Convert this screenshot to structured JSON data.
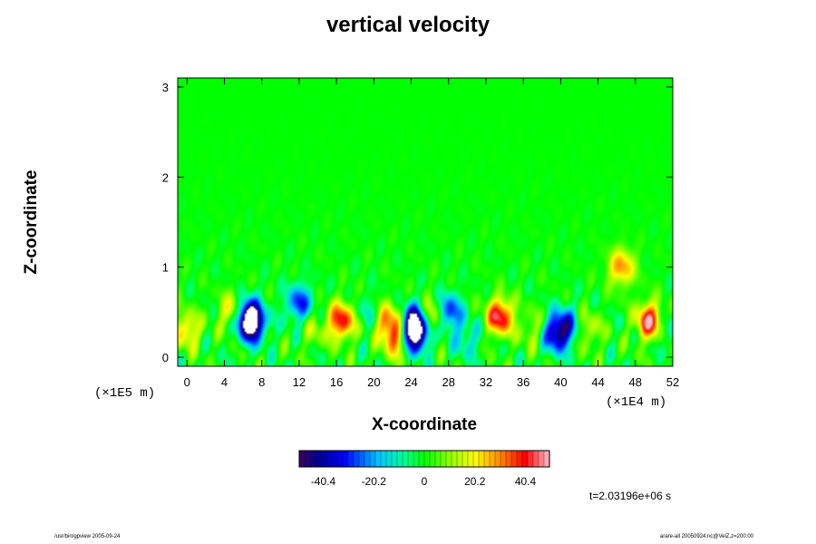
{
  "chart_data": {
    "type": "heatmap",
    "title": "vertical velocity",
    "xlabel": "X-coordinate",
    "ylabel": "Z-coordinate",
    "x_unit": "(×1E4 m)",
    "y_unit": "(×1E5 m)",
    "xlim": [
      -1,
      52
    ],
    "ylim": [
      -0.1,
      3.1
    ],
    "x_ticks": [
      0,
      4,
      8,
      12,
      16,
      20,
      24,
      28,
      32,
      36,
      40,
      44,
      48,
      52
    ],
    "y_ticks": [
      0,
      1,
      2,
      3
    ],
    "colorbar": {
      "min": -50,
      "max": 50,
      "tick_values": [
        -40.4,
        -20.2,
        0,
        20.2,
        40.4
      ],
      "tick_labels": [
        "-40.4",
        "-20.2",
        "0",
        "20.2",
        "40.4"
      ]
    },
    "features": [
      {
        "x": 0,
        "z": 0.3,
        "w": 25
      },
      {
        "x": 5,
        "z": 0.5,
        "w": 28
      },
      {
        "x": 7,
        "z": 0.35,
        "w": -35
      },
      {
        "x": 6.5,
        "z": 0.45,
        "w": -55
      },
      {
        "x": 12,
        "z": 0.6,
        "w": -30
      },
      {
        "x": 13.5,
        "z": 0.3,
        "w": 10
      },
      {
        "x": 16.5,
        "z": 0.4,
        "w": 42
      },
      {
        "x": 19.5,
        "z": 0.5,
        "w": -10
      },
      {
        "x": 21.5,
        "z": 0.4,
        "w": 30
      },
      {
        "x": 22.5,
        "z": 0.2,
        "w": 35
      },
      {
        "x": 24.5,
        "z": 0.4,
        "w": -45
      },
      {
        "x": 24.3,
        "z": 0.25,
        "w": -55
      },
      {
        "x": 26,
        "z": 0.45,
        "w": 30
      },
      {
        "x": 28,
        "z": 0.5,
        "w": -32
      },
      {
        "x": 30,
        "z": 0.2,
        "w": -15
      },
      {
        "x": 33.5,
        "z": 0.45,
        "w": 45
      },
      {
        "x": 37,
        "z": 0.3,
        "w": 12
      },
      {
        "x": 39.5,
        "z": 0.25,
        "w": -35
      },
      {
        "x": 40.5,
        "z": 0.35,
        "w": -28
      },
      {
        "x": 43,
        "z": 0.3,
        "w": 15
      },
      {
        "x": 46.5,
        "z": 1.0,
        "w": 30
      },
      {
        "x": 49.5,
        "z": 0.4,
        "w": 45
      },
      {
        "x": 51.5,
        "z": 0.3,
        "w": -12
      }
    ],
    "grid": false
  },
  "time_label": "t=2.03196e+06 s",
  "footer_left": "/usr/bin/gpview 2005-09-24",
  "footer_right": "arare-all 20050924.nc@VelZ,z=200:00",
  "colors": {
    "background": "#ffffff",
    "neutral": "#00ff00"
  }
}
